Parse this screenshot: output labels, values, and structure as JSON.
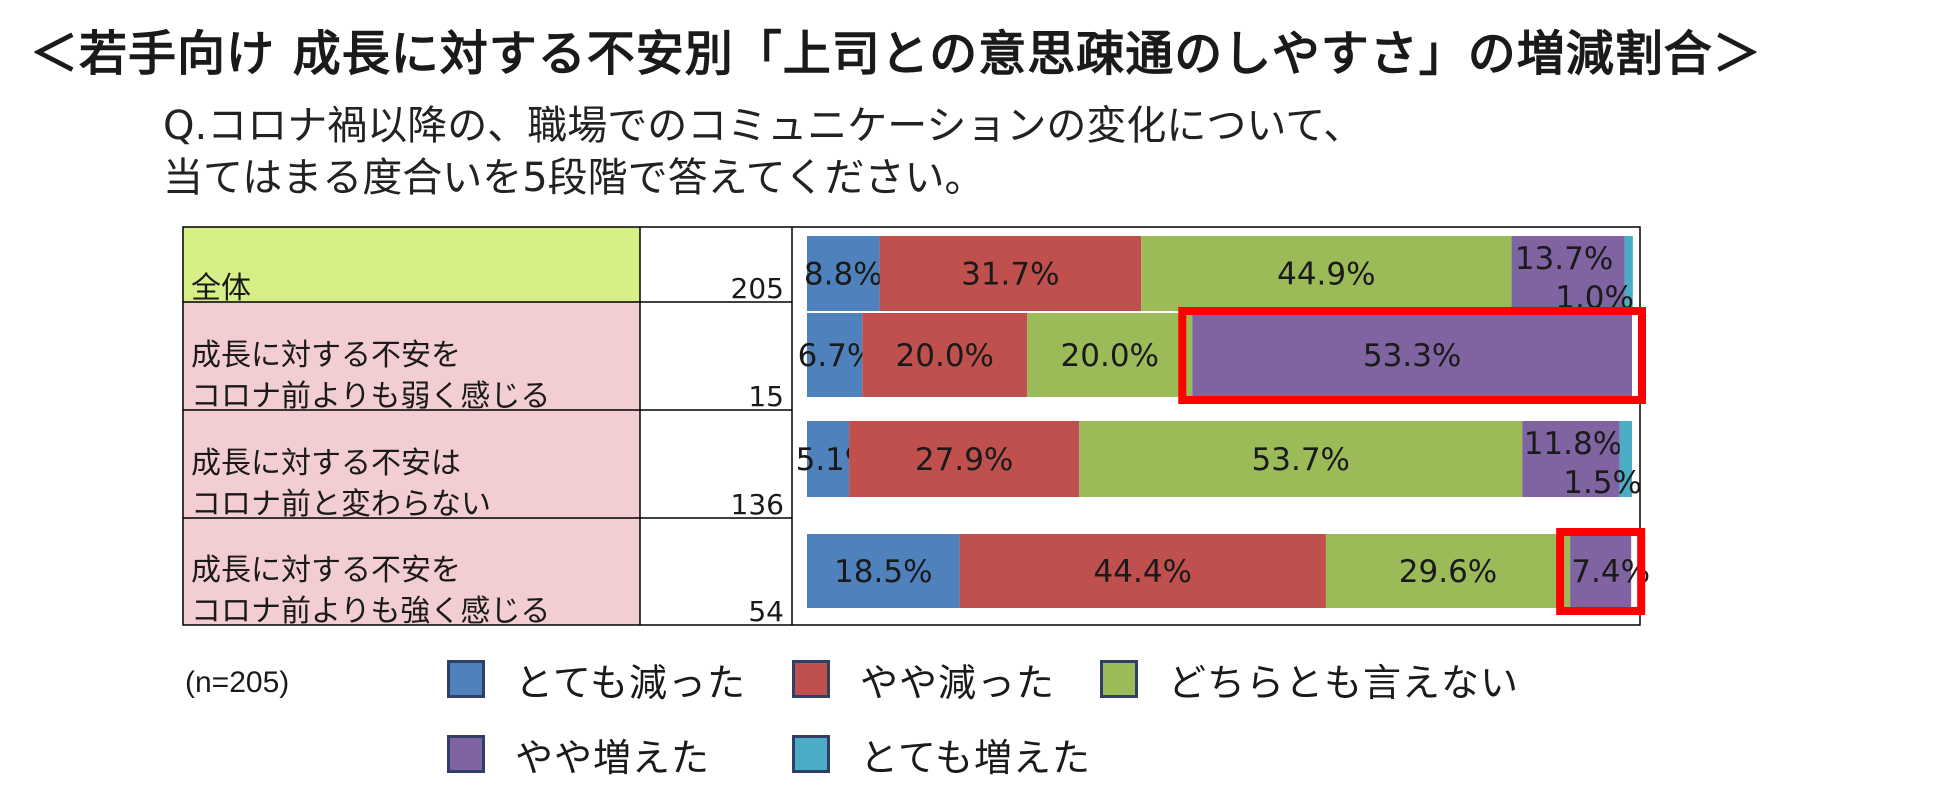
{
  "title": "＜若手向け 成長に対する不安別「上司との意思疎通のしやすさ」の増減割合＞",
  "question": {
    "line1": "Q.コロナ禍以降の、職場でのコミュニケーションの変化について、",
    "line2": "当てはまる度合いを5段階で答えてください。"
  },
  "n_note": "(n=205)",
  "colors": {
    "series": [
      "#4f81bd",
      "#c0504d",
      "#9bbb59",
      "#8064a2",
      "#4bacc6"
    ],
    "row_overall_bg": "#d7ef87",
    "row_group_bg": "#f2ced3",
    "highlight": "#ff0000"
  },
  "chart_data": {
    "type": "bar",
    "orientation": "horizontal-stacked-100",
    "categories": [
      "全体",
      "成長に対する不安をコロナ前よりも弱く感じる",
      "成長に対する不安はコロナ前と変わらない",
      "成長に対する不安をコロナ前よりも強く感じる"
    ],
    "category_lines": [
      [
        "全体"
      ],
      [
        "成長に対する不安を",
        "コロナ前よりも弱く感じる"
      ],
      [
        "成長に対する不安は",
        "コロナ前と変わらない"
      ],
      [
        "成長に対する不安を",
        "コロナ前よりも強く感じる"
      ]
    ],
    "n": [
      205,
      15,
      136,
      54
    ],
    "series": [
      {
        "name": "とても減った",
        "values": [
          8.8,
          6.7,
          5.1,
          18.5
        ],
        "labels": [
          "8.8%",
          "6.7%",
          "5.1%",
          "18.5%"
        ]
      },
      {
        "name": "やや減った",
        "values": [
          31.7,
          20.0,
          27.9,
          44.4
        ],
        "labels": [
          "31.7%",
          "20.0%",
          "27.9%",
          "44.4%"
        ]
      },
      {
        "name": "どちらとも言えない",
        "values": [
          44.9,
          20.0,
          53.7,
          29.6
        ],
        "labels": [
          "44.9%",
          "20.0%",
          "53.7%",
          "29.6%"
        ]
      },
      {
        "name": "やや増えた",
        "values": [
          13.7,
          53.3,
          11.8,
          7.4
        ],
        "labels": [
          "13.7%",
          "53.3%",
          "11.8%",
          "7.4%"
        ]
      },
      {
        "name": "とても増えた",
        "values": [
          1.0,
          0.0,
          1.5,
          0.0
        ],
        "labels": [
          "1.0%",
          "",
          "1.5%",
          ""
        ]
      }
    ],
    "highlights": [
      {
        "row": 1,
        "series": "やや増えた"
      },
      {
        "row": 3,
        "series": "やや増えた"
      }
    ],
    "xlim": [
      0,
      100
    ],
    "legend_position": "bottom"
  }
}
